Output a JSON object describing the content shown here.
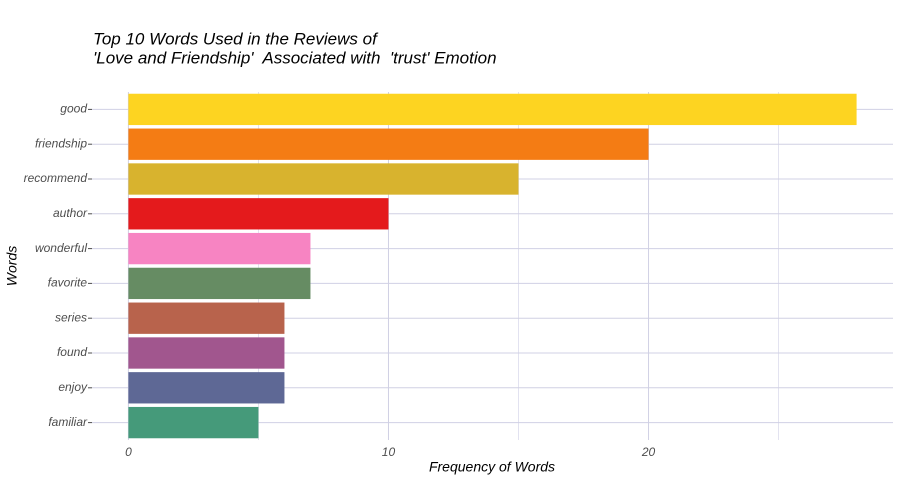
{
  "chart_data": {
    "type": "bar",
    "orientation": "horizontal",
    "title": [
      "Top 10 Words Used in the Reviews of",
      "'Love and Friendship'  Associated with  'trust' Emotion"
    ],
    "x_label": "Frequency of Words",
    "y_label": "Words",
    "categories": [
      "good",
      "friendship",
      "recommend",
      "author",
      "wonderful",
      "favorite",
      "series",
      "found",
      "enjoy",
      "familiar"
    ],
    "values": [
      28,
      20,
      15,
      10,
      7,
      7,
      6,
      6,
      6,
      5
    ],
    "colors": [
      "#fdd421",
      "#f47c14",
      "#d8b32e",
      "#e41a1c",
      "#f784c2",
      "#668c63",
      "#b8634c",
      "#a1568e",
      "#5e6895",
      "#459a7a"
    ],
    "xlim": [
      -1.4,
      29.4
    ],
    "xticks": [
      0,
      10,
      20
    ],
    "xminor": [
      5,
      15,
      25
    ],
    "grid": true
  }
}
